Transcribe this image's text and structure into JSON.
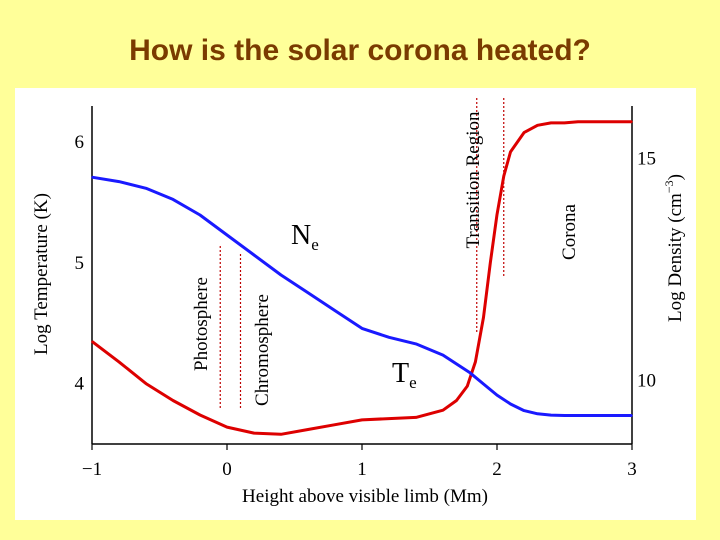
{
  "slide_title": "How is the solar corona heated?",
  "chart_data": {
    "type": "line",
    "title": "How is the solar corona heated?",
    "xlabel": "Height above visible limb (Mm)",
    "ylabel_left": "Log Temperature (K)",
    "ylabel_right_prefix": "Log Density (cm",
    "ylabel_right_exp": "−3",
    "ylabel_right_suffix": ")",
    "xlim": [
      -1,
      3
    ],
    "ylim_left": [
      3.5,
      6.3
    ],
    "ylim_right": [
      8.6,
      16.2
    ],
    "x_ticks": [
      {
        "value": -1,
        "label": "−1"
      },
      {
        "value": 0,
        "label": "0"
      },
      {
        "value": 1,
        "label": "1"
      },
      {
        "value": 2,
        "label": "2"
      },
      {
        "value": 3,
        "label": "3"
      }
    ],
    "y_ticks_left": [
      {
        "value": 6,
        "label": "6"
      },
      {
        "value": 5,
        "label": "5"
      },
      {
        "value": 4,
        "label": "4"
      }
    ],
    "y_ticks_right": [
      {
        "value": 15,
        "label": "15"
      },
      {
        "value": 10,
        "label": "10"
      }
    ],
    "regions": [
      {
        "name": "Photosphere",
        "x_start": -0.05,
        "x_end": 0.1
      },
      {
        "name": "Chromosphere",
        "x_start": 0.1,
        "x_end": 1.85
      },
      {
        "name": "Transition Region",
        "x_start": 1.85,
        "x_end": 2.05
      },
      {
        "name": "Corona",
        "x_start": 2.05,
        "x_end": 3.0
      }
    ],
    "series": [
      {
        "name": "Te",
        "label_main": "T",
        "label_sub": "e",
        "axis": "left",
        "color": "#dd0000",
        "x": [
          -1.0,
          -0.8,
          -0.6,
          -0.4,
          -0.2,
          0.0,
          0.2,
          0.4,
          0.6,
          0.8,
          1.0,
          1.2,
          1.4,
          1.6,
          1.7,
          1.78,
          1.84,
          1.9,
          1.95,
          2.0,
          2.05,
          2.1,
          2.2,
          2.3,
          2.4,
          2.5,
          2.6,
          2.7,
          2.8,
          2.9,
          3.0
        ],
        "y": [
          4.35,
          4.18,
          4.0,
          3.86,
          3.74,
          3.64,
          3.59,
          3.58,
          3.62,
          3.66,
          3.7,
          3.71,
          3.72,
          3.78,
          3.86,
          3.98,
          4.18,
          4.55,
          5.0,
          5.4,
          5.72,
          5.92,
          6.08,
          6.14,
          6.16,
          6.16,
          6.17,
          6.17,
          6.17,
          6.17,
          6.17
        ]
      },
      {
        "name": "Ne",
        "label_main": "N",
        "label_sub": "e",
        "axis": "right",
        "color": "#1a1aff",
        "x": [
          -1.0,
          -0.8,
          -0.6,
          -0.4,
          -0.2,
          0.0,
          0.2,
          0.4,
          0.6,
          0.8,
          1.0,
          1.2,
          1.4,
          1.6,
          1.8,
          1.9,
          2.0,
          2.1,
          2.2,
          2.3,
          2.4,
          2.5,
          2.6,
          2.7,
          2.8,
          2.9,
          3.0
        ],
        "y": [
          14.6,
          14.5,
          14.35,
          14.1,
          13.75,
          13.3,
          12.85,
          12.4,
          12.0,
          11.6,
          11.2,
          11.0,
          10.85,
          10.6,
          10.2,
          9.95,
          9.7,
          9.5,
          9.35,
          9.28,
          9.25,
          9.24,
          9.24,
          9.24,
          9.24,
          9.24,
          9.24
        ]
      }
    ]
  }
}
